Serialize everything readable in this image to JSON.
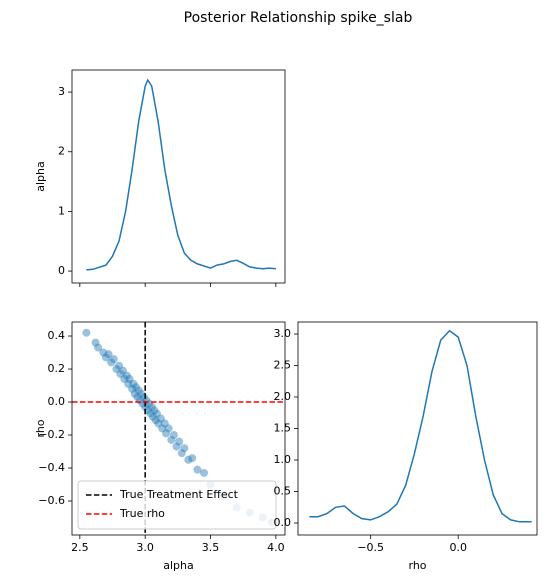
{
  "title": "Posterior Relationship spike_slab",
  "chart_data": [
    {
      "type": "line",
      "ylabel": "alpha",
      "color": "#1f77b4",
      "x": [
        2.55,
        2.6,
        2.7,
        2.75,
        2.8,
        2.85,
        2.9,
        2.95,
        3.0,
        3.02,
        3.05,
        3.1,
        3.15,
        3.2,
        3.25,
        3.3,
        3.35,
        3.4,
        3.5,
        3.55,
        3.6,
        3.65,
        3.7,
        3.75,
        3.8,
        3.85,
        3.9,
        3.95,
        4.0
      ],
      "values": [
        0.02,
        0.03,
        0.1,
        0.25,
        0.5,
        1.0,
        1.7,
        2.5,
        3.1,
        3.2,
        3.1,
        2.5,
        1.7,
        1.1,
        0.6,
        0.3,
        0.18,
        0.12,
        0.05,
        0.1,
        0.12,
        0.16,
        0.18,
        0.13,
        0.07,
        0.05,
        0.04,
        0.05,
        0.04
      ],
      "xlim": [
        2.44,
        4.07
      ],
      "ylim": [
        -0.2,
        3.37
      ],
      "xticks": [
        2.5,
        3,
        3.5,
        4
      ],
      "xtick_labels": false,
      "yticks": [
        0,
        1,
        2,
        3
      ]
    },
    {
      "type": "scatter",
      "xlabel": "alpha",
      "ylabel": "rho",
      "color": "#1f77b4",
      "x": [
        2.55,
        2.62,
        2.64,
        2.68,
        2.7,
        2.72,
        2.74,
        2.76,
        2.78,
        2.8,
        2.81,
        2.83,
        2.84,
        2.86,
        2.87,
        2.88,
        2.9,
        2.91,
        2.92,
        2.93,
        2.94,
        2.95,
        2.96,
        2.97,
        2.98,
        2.99,
        3.0,
        3.01,
        3.02,
        3.03,
        3.04,
        3.05,
        3.06,
        3.07,
        3.08,
        3.09,
        3.1,
        3.12,
        3.13,
        3.15,
        3.16,
        3.18,
        3.2,
        3.22,
        3.24,
        3.26,
        3.28,
        3.3,
        3.33,
        3.36,
        3.4,
        3.45,
        3.5,
        3.6,
        3.7,
        3.8,
        3.9,
        3.97
      ],
      "values": [
        0.42,
        0.36,
        0.33,
        0.3,
        0.27,
        0.29,
        0.24,
        0.26,
        0.2,
        0.22,
        0.17,
        0.19,
        0.14,
        0.16,
        0.11,
        0.14,
        0.08,
        0.11,
        0.05,
        0.09,
        0.03,
        0.07,
        0.01,
        0.05,
        -0.01,
        0.03,
        -0.03,
        0.01,
        -0.05,
        -0.01,
        -0.07,
        -0.03,
        -0.09,
        -0.05,
        -0.11,
        -0.07,
        -0.13,
        -0.1,
        -0.16,
        -0.13,
        -0.19,
        -0.16,
        -0.23,
        -0.2,
        -0.27,
        -0.24,
        -0.31,
        -0.28,
        -0.35,
        -0.34,
        -0.41,
        -0.43,
        -0.5,
        -0.57,
        -0.64,
        -0.67,
        -0.7,
        -0.73
      ],
      "xlim": [
        2.44,
        4.07
      ],
      "ylim": [
        -0.806,
        0.485
      ],
      "xticks": [
        2.5,
        {
          "value": 3,
          "label": "3.0"
        },
        3.5,
        {
          "value": 4,
          "label": "4.0"
        }
      ],
      "yticks": [
        {
          "value": -0.6,
          "label": "−0.6"
        },
        {
          "value": -0.4,
          "label": "−0.4"
        },
        {
          "value": -0.2,
          "label": "−0.2"
        },
        {
          "value": 0,
          "label": "0.0"
        },
        0.2,
        0.4
      ],
      "reference_lines": [
        {
          "name": "True Treatment Effect",
          "axis": "x",
          "value": 3.0,
          "color": "#000000"
        },
        {
          "name": "True rho",
          "axis": "y",
          "value": 0,
          "color": "#ff0000"
        }
      ],
      "legend": "lower left"
    },
    {
      "type": "line",
      "xlabel": "rho",
      "color": "#1f77b4",
      "x": [
        -0.85,
        -0.8,
        -0.75,
        -0.7,
        -0.65,
        -0.6,
        -0.55,
        -0.5,
        -0.45,
        -0.4,
        -0.35,
        -0.3,
        -0.25,
        -0.2,
        -0.15,
        -0.1,
        -0.05,
        0.0,
        0.05,
        0.1,
        0.15,
        0.2,
        0.25,
        0.3,
        0.35,
        0.42
      ],
      "values": [
        0.1,
        0.1,
        0.15,
        0.25,
        0.27,
        0.15,
        0.07,
        0.05,
        0.1,
        0.18,
        0.3,
        0.6,
        1.1,
        1.7,
        2.4,
        2.9,
        3.05,
        2.95,
        2.5,
        1.7,
        1.0,
        0.45,
        0.15,
        0.05,
        0.02,
        0.02
      ],
      "xlim": [
        -0.915,
        0.45
      ],
      "ylim": [
        -0.19,
        3.19
      ],
      "xticks": [
        {
          "value": -0.5,
          "label": "−0.5"
        },
        {
          "value": 0,
          "label": "0.0"
        }
      ],
      "yticks": [
        {
          "value": 0,
          "label": "0.0"
        },
        0.5,
        {
          "value": 1,
          "label": "1.0"
        },
        1.5,
        {
          "value": 2,
          "label": "2.0"
        },
        2.5,
        {
          "value": 3,
          "label": "3.0"
        }
      ]
    }
  ]
}
